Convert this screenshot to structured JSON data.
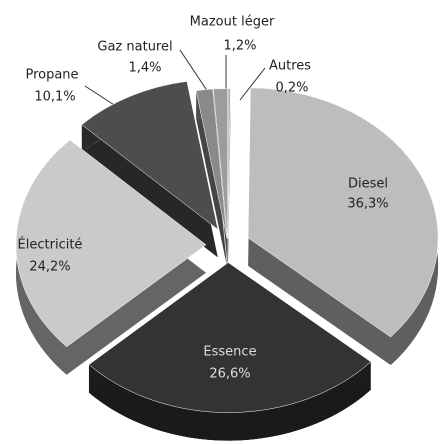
{
  "chart_data": {
    "type": "pie",
    "categories": [
      "Autres",
      "Diesel",
      "Essence",
      "Électricité",
      "Propane",
      "Gaz naturel",
      "Mazout léger"
    ],
    "values": [
      0.2,
      36.3,
      26.6,
      24.2,
      10.1,
      1.4,
      1.2
    ],
    "value_labels": [
      "0,2%",
      "36,3%",
      "26,6%",
      "24,2%",
      "10,1%",
      "1,4%",
      "1,2%"
    ],
    "colors": [
      "#b0b0b0",
      "#bdbdbd",
      "#333333",
      "#cacaca",
      "#4d4d4d",
      "#8a8a8a",
      "#9c9c9c"
    ]
  }
}
